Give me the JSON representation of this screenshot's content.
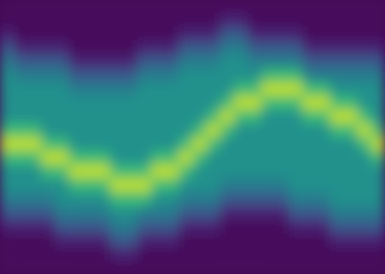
{
  "chart_data": {
    "type": "heatmap",
    "tick_labels": false,
    "zlim": [
      0,
      1
    ],
    "z": [
      [
        0.02,
        0.02,
        0.02,
        0.02,
        0.02,
        0.02,
        0.02,
        0.02,
        0.02,
        0.02,
        0.02,
        0.02,
        0.02,
        0.02,
        0.02,
        0.02,
        0.02,
        0.02,
        0.02,
        0.02,
        0.02,
        0.02,
        0.02,
        0.02,
        0.02,
        0.02,
        0.02,
        0.02
      ],
      [
        0.02,
        0.02,
        0.02,
        0.02,
        0.02,
        0.02,
        0.02,
        0.02,
        0.02,
        0.02,
        0.02,
        0.02,
        0.02,
        0.02,
        0.02,
        0.02,
        0.1,
        0.1,
        0.02,
        0.02,
        0.02,
        0.02,
        0.02,
        0.02,
        0.02,
        0.02,
        0.02,
        0.02
      ],
      [
        0.1,
        0.02,
        0.02,
        0.02,
        0.02,
        0.02,
        0.02,
        0.02,
        0.02,
        0.02,
        0.02,
        0.02,
        0.02,
        0.1,
        0.1,
        0.1,
        0.28,
        0.28,
        0.1,
        0.1,
        0.1,
        0.1,
        0.02,
        0.02,
        0.02,
        0.02,
        0.02,
        0.02
      ],
      [
        0.28,
        0.1,
        0.1,
        0.1,
        0.1,
        0.02,
        0.02,
        0.02,
        0.02,
        0.02,
        0.1,
        0.1,
        0.1,
        0.28,
        0.28,
        0.28,
        0.42,
        0.42,
        0.28,
        0.28,
        0.28,
        0.28,
        0.1,
        0.1,
        0.1,
        0.1,
        0.1,
        0.1
      ],
      [
        0.42,
        0.28,
        0.28,
        0.28,
        0.28,
        0.1,
        0.1,
        0.1,
        0.1,
        0.1,
        0.28,
        0.28,
        0.28,
        0.42,
        0.42,
        0.42,
        0.5,
        0.5,
        0.42,
        0.42,
        0.42,
        0.42,
        0.28,
        0.28,
        0.28,
        0.28,
        0.28,
        0.28
      ],
      [
        0.5,
        0.42,
        0.42,
        0.42,
        0.42,
        0.28,
        0.28,
        0.28,
        0.28,
        0.28,
        0.42,
        0.42,
        0.42,
        0.5,
        0.5,
        0.5,
        0.5,
        0.5,
        0.5,
        0.68,
        0.68,
        0.68,
        0.42,
        0.42,
        0.42,
        0.42,
        0.42,
        0.42
      ],
      [
        0.5,
        0.5,
        0.5,
        0.5,
        0.5,
        0.42,
        0.42,
        0.42,
        0.42,
        0.42,
        0.5,
        0.5,
        0.5,
        0.5,
        0.5,
        0.5,
        0.5,
        0.68,
        0.68,
        0.9,
        0.9,
        0.9,
        0.68,
        0.68,
        0.5,
        0.5,
        0.5,
        0.5
      ],
      [
        0.5,
        0.5,
        0.5,
        0.5,
        0.5,
        0.5,
        0.5,
        0.5,
        0.5,
        0.5,
        0.5,
        0.5,
        0.5,
        0.5,
        0.5,
        0.5,
        0.68,
        0.9,
        0.9,
        0.68,
        0.68,
        0.68,
        0.9,
        0.9,
        0.68,
        0.68,
        0.5,
        0.5
      ],
      [
        0.5,
        0.5,
        0.5,
        0.5,
        0.5,
        0.5,
        0.5,
        0.5,
        0.5,
        0.5,
        0.5,
        0.5,
        0.5,
        0.5,
        0.5,
        0.68,
        0.9,
        0.68,
        0.68,
        0.5,
        0.5,
        0.5,
        0.68,
        0.68,
        0.9,
        0.9,
        0.68,
        0.5
      ],
      [
        0.68,
        0.68,
        0.68,
        0.5,
        0.5,
        0.5,
        0.5,
        0.5,
        0.5,
        0.5,
        0.5,
        0.5,
        0.5,
        0.5,
        0.68,
        0.9,
        0.68,
        0.5,
        0.5,
        0.5,
        0.5,
        0.5,
        0.5,
        0.5,
        0.68,
        0.68,
        0.9,
        0.68
      ],
      [
        0.9,
        0.9,
        0.9,
        0.68,
        0.68,
        0.5,
        0.5,
        0.5,
        0.5,
        0.5,
        0.5,
        0.5,
        0.5,
        0.68,
        0.9,
        0.68,
        0.5,
        0.5,
        0.5,
        0.5,
        0.5,
        0.5,
        0.5,
        0.5,
        0.5,
        0.5,
        0.68,
        0.9
      ],
      [
        0.68,
        0.68,
        0.68,
        0.9,
        0.9,
        0.68,
        0.68,
        0.68,
        0.5,
        0.5,
        0.5,
        0.68,
        0.68,
        0.9,
        0.68,
        0.5,
        0.5,
        0.5,
        0.5,
        0.5,
        0.5,
        0.5,
        0.5,
        0.5,
        0.5,
        0.5,
        0.5,
        0.68
      ],
      [
        0.5,
        0.5,
        0.5,
        0.68,
        0.68,
        0.9,
        0.9,
        0.9,
        0.68,
        0.68,
        0.68,
        0.9,
        0.9,
        0.68,
        0.5,
        0.5,
        0.5,
        0.5,
        0.5,
        0.5,
        0.5,
        0.5,
        0.5,
        0.5,
        0.5,
        0.5,
        0.5,
        0.5
      ],
      [
        0.5,
        0.5,
        0.5,
        0.5,
        0.5,
        0.68,
        0.68,
        0.68,
        0.9,
        0.9,
        0.9,
        0.68,
        0.68,
        0.5,
        0.5,
        0.5,
        0.42,
        0.42,
        0.42,
        0.42,
        0.42,
        0.5,
        0.5,
        0.5,
        0.5,
        0.5,
        0.5,
        0.5
      ],
      [
        0.42,
        0.42,
        0.42,
        0.42,
        0.5,
        0.5,
        0.5,
        0.5,
        0.68,
        0.68,
        0.68,
        0.5,
        0.5,
        0.42,
        0.42,
        0.42,
        0.28,
        0.28,
        0.28,
        0.28,
        0.28,
        0.42,
        0.42,
        0.42,
        0.5,
        0.5,
        0.5,
        0.5
      ],
      [
        0.28,
        0.28,
        0.28,
        0.28,
        0.42,
        0.42,
        0.42,
        0.42,
        0.5,
        0.5,
        0.42,
        0.42,
        0.42,
        0.28,
        0.28,
        0.28,
        0.1,
        0.1,
        0.1,
        0.1,
        0.1,
        0.28,
        0.28,
        0.28,
        0.42,
        0.42,
        0.42,
        0.42
      ],
      [
        0.1,
        0.1,
        0.1,
        0.1,
        0.28,
        0.28,
        0.28,
        0.28,
        0.42,
        0.42,
        0.28,
        0.28,
        0.28,
        0.1,
        0.1,
        0.1,
        0.02,
        0.02,
        0.02,
        0.02,
        0.02,
        0.1,
        0.1,
        0.1,
        0.28,
        0.28,
        0.28,
        0.28
      ],
      [
        0.02,
        0.02,
        0.02,
        0.02,
        0.1,
        0.1,
        0.1,
        0.1,
        0.28,
        0.28,
        0.1,
        0.1,
        0.1,
        0.02,
        0.02,
        0.02,
        0.02,
        0.02,
        0.02,
        0.02,
        0.02,
        0.02,
        0.02,
        0.02,
        0.1,
        0.1,
        0.1,
        0.1
      ],
      [
        0.02,
        0.02,
        0.02,
        0.02,
        0.02,
        0.02,
        0.02,
        0.02,
        0.1,
        0.1,
        0.02,
        0.02,
        0.02,
        0.02,
        0.02,
        0.02,
        0.02,
        0.02,
        0.02,
        0.02,
        0.02,
        0.02,
        0.02,
        0.02,
        0.02,
        0.02,
        0.02,
        0.02
      ],
      [
        0.02,
        0.02,
        0.02,
        0.02,
        0.02,
        0.02,
        0.02,
        0.02,
        0.02,
        0.02,
        0.02,
        0.02,
        0.02,
        0.02,
        0.02,
        0.02,
        0.02,
        0.02,
        0.02,
        0.02,
        0.02,
        0.02,
        0.02,
        0.02,
        0.02,
        0.02,
        0.02,
        0.02
      ]
    ]
  }
}
